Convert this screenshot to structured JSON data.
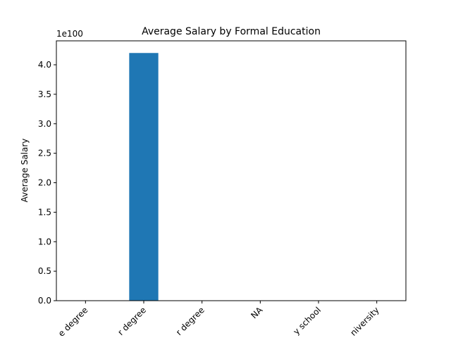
{
  "chart_data": {
    "type": "bar",
    "title": "Average Salary by Formal Education",
    "ylabel": "Average Salary",
    "y_offset_label": "1e100",
    "categories": [
      "e degree",
      "r degree",
      "r degree",
      "NA",
      "y school",
      "niversity"
    ],
    "values": [
      0,
      4.2e+100,
      0,
      0,
      0,
      0
    ],
    "color": "#1f77b4",
    "ylim": [
      0,
      4.406e+100
    ],
    "yticks": [
      {
        "value": 0,
        "label": "0.0"
      },
      {
        "value": 5e+99,
        "label": "0.5"
      },
      {
        "value": 1e+100,
        "label": "1.0"
      },
      {
        "value": 1.5e+100,
        "label": "1.5"
      },
      {
        "value": 2e+100,
        "label": "2.0"
      },
      {
        "value": 2.5e+100,
        "label": "2.5"
      },
      {
        "value": 3e+100,
        "label": "3.0"
      },
      {
        "value": 3.5e+100,
        "label": "3.5"
      },
      {
        "value": 4e+100,
        "label": "4.0"
      }
    ],
    "grid": false
  }
}
